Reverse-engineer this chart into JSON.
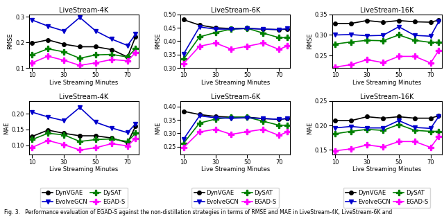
{
  "x": [
    10,
    20,
    30,
    40,
    50,
    60,
    70,
    75
  ],
  "plots": {
    "rmse_4k": {
      "title": "LiveStream-4K",
      "ylabel": "RMSE",
      "DynVGAE": [
        0.197,
        0.21,
        0.193,
        0.183,
        0.183,
        0.172,
        0.143,
        0.222
      ],
      "DySAT": [
        0.151,
        0.175,
        0.163,
        0.138,
        0.151,
        0.153,
        0.143,
        0.175
      ],
      "EvolveGCN": [
        0.288,
        0.264,
        0.245,
        0.298,
        0.245,
        0.213,
        0.188,
        0.232
      ],
      "EGAD-S": [
        0.12,
        0.146,
        0.13,
        0.11,
        0.12,
        0.133,
        0.128,
        0.16
      ],
      "ylim": [
        0.1,
        0.31
      ],
      "yticks": [
        0.1,
        0.15,
        0.2,
        0.25,
        0.3
      ]
    },
    "rmse_6k": {
      "title": "LiveStream-6K",
      "ylabel": "RMSE",
      "DynVGAE": [
        0.48,
        0.46,
        0.45,
        0.447,
        0.448,
        0.445,
        0.443,
        0.445
      ],
      "DySAT": [
        0.333,
        0.416,
        0.432,
        0.445,
        0.448,
        0.43,
        0.413,
        0.413
      ],
      "EvolveGCN": [
        0.352,
        0.453,
        0.445,
        0.445,
        0.447,
        0.445,
        0.443,
        0.447
      ],
      "EGAD-S": [
        0.316,
        0.381,
        0.393,
        0.37,
        0.381,
        0.393,
        0.369,
        0.382
      ],
      "ylim": [
        0.3,
        0.5
      ],
      "yticks": [
        0.35,
        0.4,
        0.45
      ]
    },
    "rmse_16k": {
      "title": "LiveStream-16K",
      "ylabel": "RMSE",
      "DynVGAE": [
        0.328,
        0.328,
        0.335,
        0.331,
        0.335,
        0.332,
        0.331,
        0.336
      ],
      "DySAT": [
        0.278,
        0.283,
        0.287,
        0.286,
        0.3,
        0.287,
        0.282,
        0.282
      ],
      "EvolveGCN": [
        0.3,
        0.301,
        0.298,
        0.299,
        0.32,
        0.299,
        0.297,
        0.332
      ],
      "EGAD-S": [
        0.222,
        0.228,
        0.24,
        0.233,
        0.248,
        0.248,
        0.232,
        0.262
      ],
      "ylim": [
        0.22,
        0.35
      ],
      "yticks": [
        0.23,
        0.25,
        0.27,
        0.29,
        0.31,
        0.33
      ]
    },
    "mae_4k": {
      "title": "LiveStream-4K",
      "ylabel": "MAE",
      "DynVGAE": [
        0.128,
        0.148,
        0.138,
        0.13,
        0.13,
        0.123,
        0.108,
        0.16
      ],
      "DySAT": [
        0.118,
        0.138,
        0.133,
        0.112,
        0.118,
        0.12,
        0.112,
        0.138
      ],
      "EvolveGCN": [
        0.205,
        0.19,
        0.178,
        0.22,
        0.173,
        0.155,
        0.14,
        0.168
      ],
      "EGAD-S": [
        0.093,
        0.115,
        0.102,
        0.085,
        0.092,
        0.105,
        0.098,
        0.122
      ],
      "ylim": [
        0.07,
        0.24
      ],
      "yticks": [
        0.08,
        0.1,
        0.12,
        0.14,
        0.16,
        0.18,
        0.2,
        0.22
      ]
    },
    "mae_6k": {
      "title": "LiveStream-6K",
      "ylabel": "MAE",
      "DynVGAE": [
        0.382,
        0.37,
        0.363,
        0.36,
        0.36,
        0.355,
        0.352,
        0.355
      ],
      "DySAT": [
        0.263,
        0.338,
        0.353,
        0.36,
        0.36,
        0.345,
        0.33,
        0.33
      ],
      "EvolveGCN": [
        0.278,
        0.365,
        0.358,
        0.356,
        0.358,
        0.355,
        0.352,
        0.355
      ],
      "EGAD-S": [
        0.247,
        0.305,
        0.315,
        0.296,
        0.306,
        0.315,
        0.292,
        0.305
      ],
      "ylim": [
        0.22,
        0.42
      ],
      "yticks": [
        0.32,
        0.34,
        0.36,
        0.38,
        0.4
      ]
    },
    "mae_16k": {
      "title": "LiveStream-16K",
      "ylabel": "MAE",
      "DynVGAE": [
        0.21,
        0.21,
        0.218,
        0.215,
        0.218,
        0.215,
        0.215,
        0.22
      ],
      "DySAT": [
        0.183,
        0.188,
        0.192,
        0.19,
        0.202,
        0.19,
        0.188,
        0.188
      ],
      "EvolveGCN": [
        0.195,
        0.198,
        0.195,
        0.195,
        0.21,
        0.196,
        0.194,
        0.218
      ],
      "EGAD-S": [
        0.148,
        0.152,
        0.16,
        0.156,
        0.167,
        0.167,
        0.155,
        0.177
      ],
      "ylim": [
        0.14,
        0.25
      ],
      "yticks": [
        0.18,
        0.2,
        0.22,
        0.24
      ]
    }
  },
  "colors": {
    "DynVGAE": "#000000",
    "DySAT": "#008000",
    "EvolveGCN": "#0000cc",
    "EGAD-S": "#ff00ff"
  },
  "marker_map": {
    "DynVGAE": "o",
    "DySAT": "P",
    "EvolveGCN": "v",
    "EGAD-S": "P"
  },
  "series": [
    "DynVGAE",
    "DySAT",
    "EvolveGCN",
    "EGAD-S"
  ],
  "xlabel": "Live Streaming Minutes",
  "xticks": [
    10,
    30,
    50,
    70
  ],
  "caption": "Fig. 3.   Performance evaluation of EGAD-S against the non-distillation strategies in terms of RMSE and MAE in LiveStream-4K, LiveStream-6K and",
  "linewidth": 1.2,
  "markersize_circle": 4,
  "markersize_plus": 6,
  "markersize_tri": 5,
  "title_fontsize": 7,
  "label_fontsize": 6,
  "tick_fontsize": 6,
  "legend_fontsize": 6
}
